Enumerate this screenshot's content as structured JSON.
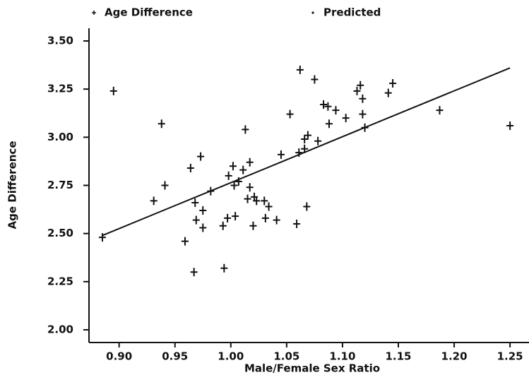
{
  "chart_data": {
    "type": "scatter",
    "x_label": "Male/Female Sex Ratio",
    "y_label": "Age Difference",
    "xlim": [
      0.873,
      1.267
    ],
    "ylim": [
      1.934,
      3.566
    ],
    "xticks": [
      {
        "value": 0.9,
        "label": "0.90"
      },
      {
        "value": 0.95,
        "label": "0.95"
      },
      {
        "value": 1.0,
        "label": "1.00"
      },
      {
        "value": 1.05,
        "label": "1.05"
      },
      {
        "value": 1.1,
        "label": "1.10"
      },
      {
        "value": 1.15,
        "label": "1.15"
      },
      {
        "value": 1.2,
        "label": "1.20"
      },
      {
        "value": 1.25,
        "label": "1.25"
      }
    ],
    "yticks": [
      {
        "value": 2.0,
        "label": "2.00"
      },
      {
        "value": 2.25,
        "label": "2.25"
      },
      {
        "value": 2.5,
        "label": "2.50"
      },
      {
        "value": 2.75,
        "label": "2.75"
      },
      {
        "value": 3.0,
        "label": "3.00"
      },
      {
        "value": 3.25,
        "label": "3.25"
      },
      {
        "value": 3.5,
        "label": "3.50"
      }
    ],
    "grid": false,
    "legend": "top",
    "series": [
      {
        "name": "Age Difference",
        "color": "#111111",
        "style": "cross",
        "x": [
          0.885,
          0.895,
          0.931,
          0.938,
          0.941,
          0.959,
          0.964,
          0.967,
          0.968,
          0.969,
          0.973,
          0.975,
          0.975,
          0.982,
          0.994,
          0.993,
          0.997,
          0.998,
          1.002,
          1.003,
          1.004,
          1.007,
          1.011,
          1.013,
          1.015,
          1.017,
          1.017,
          1.02,
          1.021,
          1.023,
          1.03,
          1.031,
          1.034,
          1.041,
          1.045,
          1.053,
          1.059,
          1.061,
          1.062,
          1.066,
          1.066,
          1.068,
          1.069,
          1.075,
          1.078,
          1.083,
          1.087,
          1.088,
          1.094,
          1.103,
          1.113,
          1.116,
          1.118,
          1.118,
          1.12,
          1.141,
          1.145,
          1.187,
          1.25
        ],
        "values": [
          2.48,
          3.24,
          2.67,
          3.07,
          2.75,
          2.46,
          2.84,
          2.3,
          2.66,
          2.57,
          2.9,
          2.62,
          2.53,
          2.72,
          2.32,
          2.54,
          2.58,
          2.8,
          2.85,
          2.75,
          2.59,
          2.77,
          2.83,
          3.04,
          2.68,
          2.74,
          2.87,
          2.54,
          2.69,
          2.67,
          2.67,
          2.58,
          2.64,
          2.57,
          2.91,
          3.12,
          2.55,
          2.92,
          3.35,
          2.99,
          2.94,
          2.64,
          3.01,
          3.3,
          2.98,
          3.17,
          3.16,
          3.07,
          3.14,
          3.1,
          3.24,
          3.27,
          3.2,
          3.12,
          3.05,
          3.23,
          3.28,
          3.14,
          3.06
        ]
      },
      {
        "name": "Predicted",
        "color": "#111111",
        "style": "line",
        "x": [
          0.885,
          0.95,
          1.0,
          1.05,
          1.1,
          1.15,
          1.2,
          1.25
        ],
        "values": [
          2.49,
          2.645,
          2.764,
          2.883,
          3.003,
          3.122,
          3.241,
          3.36
        ]
      }
    ]
  }
}
